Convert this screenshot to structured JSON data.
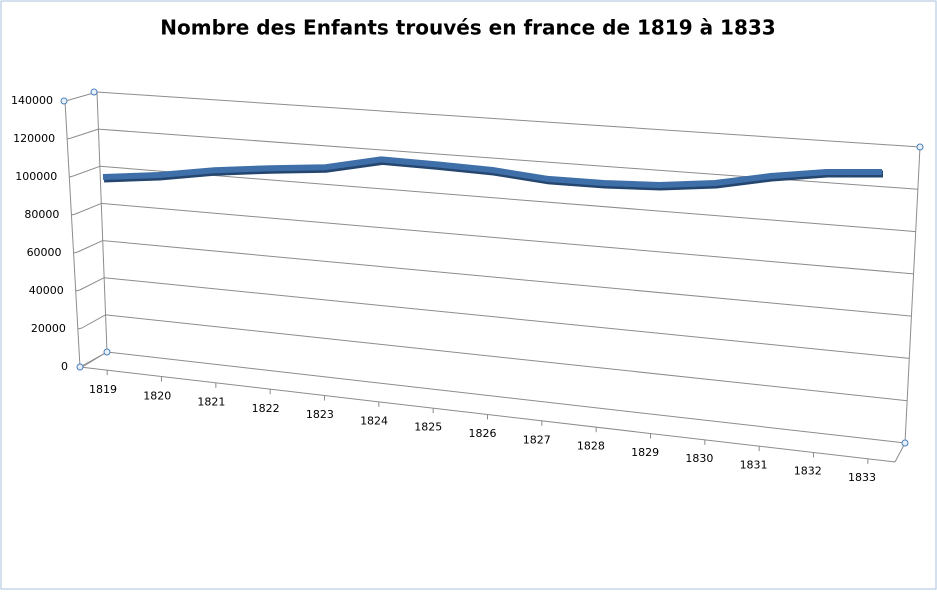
{
  "chart_data": {
    "type": "line",
    "title": "Nombre des Enfants trouvés en france de 1819 à 1833",
    "categories": [
      "1819",
      "1820",
      "1821",
      "1822",
      "1823",
      "1824",
      "1825",
      "1826",
      "1827",
      "1828",
      "1829",
      "1830",
      "1831",
      "1832",
      "1833"
    ],
    "series": [
      {
        "name": "Enfants trouvés",
        "color": "#3f6fa8",
        "values": [
          96700,
          100000,
          104700,
          107900,
          110500,
          116500,
          116000,
          115200,
          112800,
          112800,
          113800,
          116700,
          121900,
          125600,
          127400
        ]
      }
    ],
    "ylim": [
      0,
      140000
    ],
    "yticks": [
      0,
      20000,
      40000,
      60000,
      80000,
      100000,
      120000,
      140000
    ],
    "grid": true
  }
}
